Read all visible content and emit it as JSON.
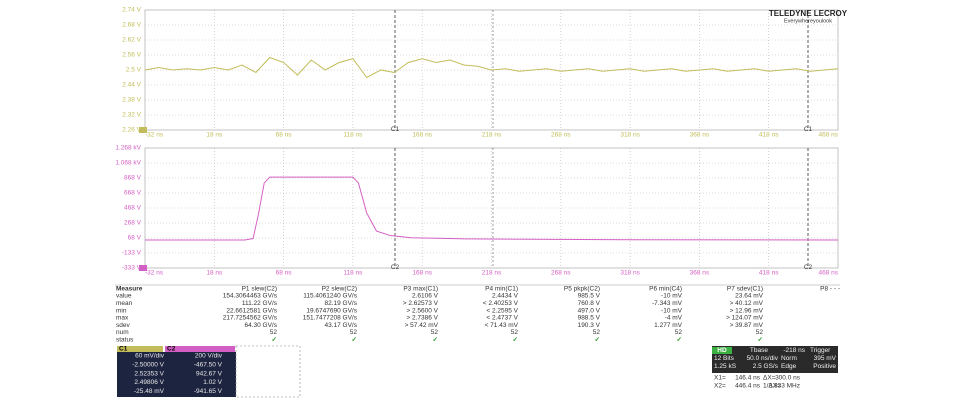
{
  "logo": {
    "brand": "TELEDYNE LECROY",
    "tagline": "Everywhereyoulook"
  },
  "panels": [
    {
      "channel": "C1",
      "color": "#c2bd5a",
      "ylabels": [
        "2.74 V",
        "2.68 V",
        "2.62 V",
        "2.56 V",
        "2.5 V",
        "2.44 V",
        "2.38 V",
        "2.32 V",
        "2.26 V"
      ],
      "xlabels": [
        "-32 ns",
        "18 ns",
        "68 ns",
        "118 ns",
        "168 ns",
        "218 ns",
        "268 ns",
        "318 ns",
        "368 ns",
        "418 ns",
        "468 ns"
      ],
      "cursor_labels": [
        "C1",
        "C1"
      ],
      "xlim": [
        -32,
        468
      ],
      "ylim": [
        2.26,
        2.74
      ],
      "trace": {
        "x": [
          -32,
          -22,
          -12,
          -2,
          8,
          18,
          28,
          38,
          48,
          58,
          68,
          78,
          88,
          98,
          108,
          118,
          128,
          138,
          148,
          158,
          168,
          178,
          188,
          198,
          208,
          218,
          228,
          238,
          248,
          258,
          268,
          278,
          288,
          298,
          308,
          318,
          328,
          338,
          348,
          358,
          368,
          378,
          388,
          398,
          408,
          418,
          428,
          438,
          448,
          458,
          468
        ],
        "values": [
          2.5,
          2.51,
          2.5,
          2.505,
          2.5,
          2.51,
          2.5,
          2.52,
          2.49,
          2.55,
          2.53,
          2.48,
          2.54,
          2.5,
          2.53,
          2.545,
          2.47,
          2.5,
          2.49,
          2.53,
          2.545,
          2.53,
          2.54,
          2.52,
          2.515,
          2.5,
          2.505,
          2.495,
          2.5,
          2.505,
          2.495,
          2.5,
          2.505,
          2.495,
          2.5,
          2.505,
          2.495,
          2.5,
          2.505,
          2.495,
          2.5,
          2.505,
          2.495,
          2.5,
          2.505,
          2.495,
          2.5,
          2.505,
          2.495,
          2.5,
          2.505
        ]
      }
    },
    {
      "channel": "C2",
      "color": "#d45fc4",
      "ylabels": [
        "1.268 kV",
        "1.068 kV",
        "868 V",
        "668 V",
        "468 V",
        "268 V",
        "68 V",
        "-133 V",
        "-333 V"
      ],
      "xlabels": [
        "-32 ns",
        "18 ns",
        "68 ns",
        "118 ns",
        "168 ns",
        "218 ns",
        "268 ns",
        "318 ns",
        "368 ns",
        "418 ns",
        "468 ns"
      ],
      "cursor_labels": [
        "C2",
        "C2"
      ],
      "xlim": [
        -32,
        468
      ],
      "ylim": [
        -333,
        1268
      ],
      "trace": {
        "x": [
          -32,
          40,
          46,
          50,
          54,
          58,
          118,
          122,
          128,
          135,
          145,
          160,
          200,
          300,
          468
        ],
        "values": [
          40,
          40,
          60,
          400,
          800,
          880,
          880,
          800,
          400,
          160,
          100,
          70,
          55,
          45,
          40
        ]
      }
    }
  ],
  "measure": {
    "title": "Measure",
    "row_labels": [
      "value",
      "mean",
      "min",
      "max",
      "sdev",
      "num",
      "status"
    ],
    "columns": [
      {
        "header": "P1 slew(C2)",
        "cells": [
          "154.3064463 GV/s",
          "111.22 GV/s",
          "22.6612581 GV/s",
          "217.7254562 GV/s",
          "64.30 GV/s",
          "52",
          "✓"
        ]
      },
      {
        "header": "P2 slew(C2)",
        "cells": [
          "115.4061240 GV/s",
          "82.19 GV/s",
          "19.6747690 GV/s",
          "151.7477208 GV/s",
          "43.17 GV/s",
          "52",
          "✓"
        ]
      },
      {
        "header": "P3 max(C1)",
        "cells": [
          "2.6106 V",
          "> 2.62573 V",
          "> 2.5600 V",
          "> 2.7386 V",
          "> 57.42 mV",
          "52",
          "✓"
        ]
      },
      {
        "header": "P4 min(C1)",
        "cells": [
          "2.4434 V",
          "< 2.40253 V",
          "< 2.2595 V",
          "< 2.4737 V",
          "< 71.43 mV",
          "52",
          "✓"
        ]
      },
      {
        "header": "P5 pkpk(C2)",
        "cells": [
          "985.5 V",
          "760.8 V",
          "497.0 V",
          "988.5 V",
          "190.3 V",
          "52",
          "✓"
        ]
      },
      {
        "header": "P6 min(C4)",
        "cells": [
          "-10 mV",
          "-7.343 mV",
          "-10 mV",
          "-4 mV",
          "1.277 mV",
          "52",
          "✓"
        ]
      },
      {
        "header": "P7 sdev(C1)",
        "cells": [
          "23.64 mV",
          "> 40.12 mV",
          "> 12.96 mV",
          "> 124.07 mV",
          "> 39.87 mV",
          "52",
          "✓"
        ]
      }
    ],
    "p8": "P8 - - -"
  },
  "channels": [
    {
      "name": "C1",
      "rows": [
        "60 mV/div",
        "-2.50000 V",
        "2.52353 V",
        "2.49806 V",
        "-25.48 mV"
      ]
    },
    {
      "name": "C2",
      "rows": [
        "200 V/div",
        "-467.50 V",
        "942.67 V",
        "1.02 V",
        "-941.65 V"
      ]
    }
  ],
  "timebase": {
    "badge": "HD",
    "rows": [
      [
        "Tbase",
        "-218 ns",
        "Trigger"
      ],
      [
        "12 Bits",
        "50.0 ns/div",
        "Norm",
        "395 mV"
      ],
      [
        "1.25 kS",
        "2.5 GS/s",
        "Edge",
        "Positive"
      ]
    ],
    "cursors": [
      [
        "X1=",
        "146.4 ns",
        "ΔX=",
        "300.0 ns"
      ],
      [
        "X2=",
        "446.4 ns",
        "1/ΔX=",
        "3.333 MHz"
      ]
    ]
  }
}
